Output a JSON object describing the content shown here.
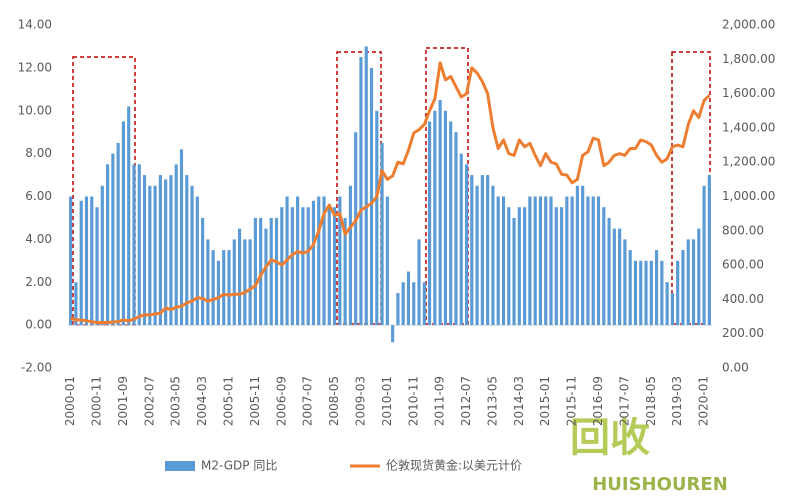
{
  "chart_data": {
    "type": "combo",
    "categories": [
      "2000-01",
      null,
      null,
      null,
      null,
      "2000-11",
      null,
      null,
      null,
      null,
      "2001-09",
      null,
      null,
      null,
      null,
      "2002-07",
      null,
      null,
      null,
      null,
      "2003-05",
      null,
      null,
      null,
      null,
      "2004-03",
      null,
      null,
      null,
      null,
      "2005-01",
      null,
      null,
      null,
      null,
      "2005-11",
      null,
      null,
      null,
      null,
      "2006-09",
      null,
      null,
      null,
      null,
      "2007-07",
      null,
      null,
      null,
      null,
      "2008-05",
      null,
      null,
      null,
      null,
      "2009-03",
      null,
      null,
      null,
      null,
      "2010-01",
      null,
      null,
      null,
      null,
      "2010-11",
      null,
      null,
      null,
      null,
      "2011-09",
      null,
      null,
      null,
      null,
      "2012-07",
      null,
      null,
      null,
      null,
      "2013-05",
      null,
      null,
      null,
      null,
      "2014-03",
      null,
      null,
      null,
      null,
      "2015-01",
      null,
      null,
      null,
      null,
      "2015-11",
      null,
      null,
      null,
      null,
      "2016-09",
      null,
      null,
      null,
      null,
      "2017-07",
      null,
      null,
      null,
      null,
      "2018-05",
      null,
      null,
      null,
      null,
      "2019-03",
      null,
      null,
      null,
      null,
      "2020-01",
      null
    ],
    "series": [
      {
        "name": "M2-GDP 同比",
        "type": "bar",
        "color": "#5b9bd5",
        "axis": "y",
        "values": [
          6.0,
          2.0,
          5.8,
          6.0,
          6.0,
          5.5,
          6.5,
          7.5,
          8.0,
          8.5,
          9.5,
          10.2,
          7.5,
          7.5,
          7.0,
          6.5,
          6.5,
          7.0,
          6.8,
          7.0,
          7.5,
          8.2,
          7.0,
          6.5,
          6.0,
          5.0,
          4.0,
          3.5,
          3.0,
          3.5,
          3.5,
          4.0,
          4.5,
          4.0,
          4.0,
          5.0,
          5.0,
          4.5,
          5.0,
          5.0,
          5.5,
          6.0,
          5.5,
          6.0,
          5.5,
          5.5,
          5.8,
          6.0,
          6.0,
          5.5,
          5.5,
          6.0,
          5.0,
          6.5,
          9.0,
          12.5,
          13.0,
          12.0,
          10.0,
          8.5,
          6.0,
          -0.8,
          1.5,
          2.0,
          2.5,
          2.0,
          4.0,
          2.0,
          9.5,
          10.0,
          10.5,
          10.0,
          9.5,
          9.0,
          8.0,
          7.5,
          7.0,
          6.5,
          7.0,
          7.0,
          6.5,
          6.0,
          6.0,
          5.5,
          5.0,
          5.5,
          5.5,
          6.0,
          6.0,
          6.0,
          6.0,
          6.0,
          5.5,
          5.5,
          6.0,
          6.0,
          6.5,
          6.5,
          6.0,
          6.0,
          6.0,
          5.5,
          5.0,
          4.5,
          4.5,
          4.0,
          3.5,
          3.0,
          3.0,
          3.0,
          3.0,
          3.5,
          3.0,
          2.0,
          1.5,
          3.0,
          3.5,
          4.0,
          4.0,
          4.5,
          6.5,
          7.0
        ]
      },
      {
        "name": "伦敦现货黄金:以美元计价",
        "type": "line",
        "color": "#ed7d31",
        "axis": "y2",
        "values": [
          290,
          280,
          280,
          275,
          270,
          265,
          265,
          265,
          268,
          270,
          280,
          275,
          285,
          300,
          310,
          310,
          315,
          320,
          350,
          340,
          355,
          360,
          380,
          390,
          410,
          405,
          390,
          400,
          410,
          430,
          425,
          430,
          430,
          440,
          460,
          480,
          540,
          590,
          630,
          620,
          600,
          630,
          660,
          680,
          670,
          680,
          720,
          800,
          900,
          950,
          890,
          900,
          780,
          820,
          860,
          920,
          940,
          960,
          1000,
          1150,
          1100,
          1120,
          1200,
          1190,
          1270,
          1370,
          1390,
          1420,
          1500,
          1570,
          1780,
          1680,
          1700,
          1640,
          1580,
          1600,
          1750,
          1720,
          1670,
          1600,
          1400,
          1280,
          1330,
          1250,
          1240,
          1330,
          1290,
          1310,
          1240,
          1180,
          1250,
          1200,
          1190,
          1130,
          1125,
          1080,
          1100,
          1240,
          1260,
          1340,
          1330,
          1180,
          1200,
          1240,
          1250,
          1240,
          1280,
          1280,
          1330,
          1320,
          1300,
          1240,
          1200,
          1220,
          1290,
          1300,
          1290,
          1420,
          1500,
          1460,
          1560,
          1590
        ]
      }
    ],
    "ylim": [
      -2,
      14
    ],
    "yticks": [
      {
        "value": -2,
        "label": "-2.00"
      },
      {
        "value": 0,
        "label": "0.00"
      },
      {
        "value": 2,
        "label": "2.00"
      },
      {
        "value": 4,
        "label": "4.00"
      },
      {
        "value": 6,
        "label": "6.00"
      },
      {
        "value": 8,
        "label": "8.00"
      },
      {
        "value": 10,
        "label": "10.00"
      },
      {
        "value": 12,
        "label": "12.00"
      },
      {
        "value": 14,
        "label": "14.00"
      }
    ],
    "y2lim": [
      0,
      2000
    ],
    "y2ticks": [
      {
        "value": 0,
        "label": "0.00"
      },
      {
        "value": 200,
        "label": "200.00"
      },
      {
        "value": 400,
        "label": "400.00"
      },
      {
        "value": 600,
        "label": "600.00"
      },
      {
        "value": 800,
        "label": "800.00"
      },
      {
        "value": 1000,
        "label": "1,000.00"
      },
      {
        "value": 1200,
        "label": "1,200.00"
      },
      {
        "value": 1400,
        "label": "1,400.00"
      },
      {
        "value": 1600,
        "label": "1,600.00"
      },
      {
        "value": 1800,
        "label": "1,800.00"
      },
      {
        "value": 2000,
        "label": "2,000.00"
      }
    ],
    "grid": false,
    "legend": "bottom",
    "watermark": {
      "mark": "回收",
      "text": "HUISHOUREN"
    }
  }
}
